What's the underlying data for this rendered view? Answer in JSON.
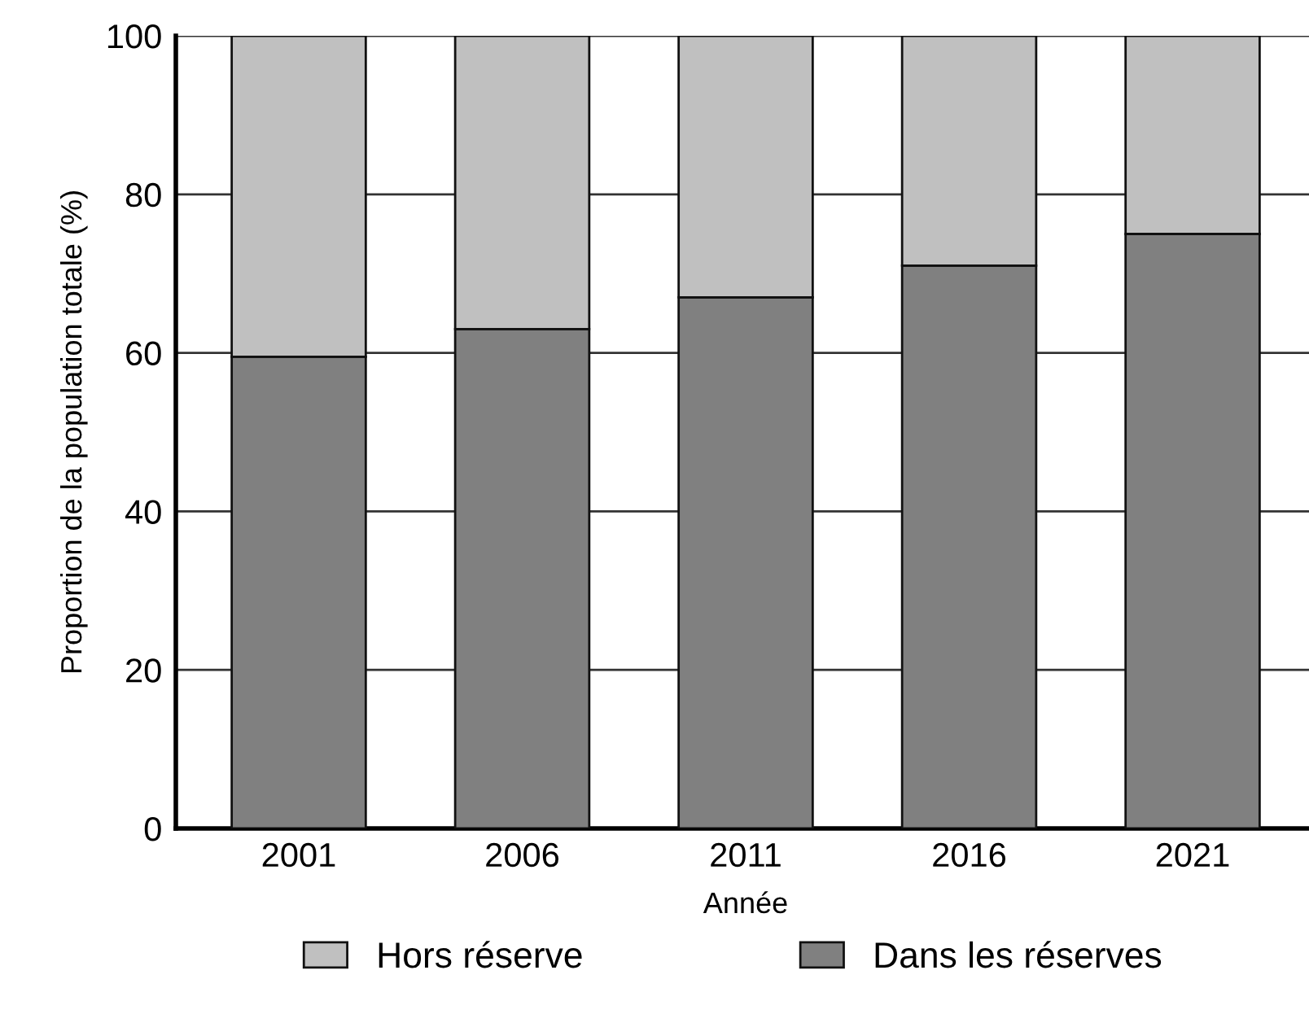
{
  "chart_data": {
    "type": "bar",
    "stacked": true,
    "xlabel": "Année",
    "ylabel": "Proportion de la population totale (%)",
    "categories": [
      "2001",
      "2006",
      "2011",
      "2016",
      "2021"
    ],
    "series": [
      {
        "name": "Dans les réserves",
        "color": "#808080",
        "values": [
          59.5,
          63,
          67,
          71,
          75
        ]
      },
      {
        "name": "Hors réserve",
        "color": "#c0c0c0",
        "values": [
          40.5,
          37,
          33,
          29,
          25
        ]
      }
    ],
    "ylim": [
      0,
      100
    ],
    "yticks": [
      0,
      20,
      40,
      60,
      80,
      100
    ],
    "grid": "y",
    "legend": "bottom"
  }
}
